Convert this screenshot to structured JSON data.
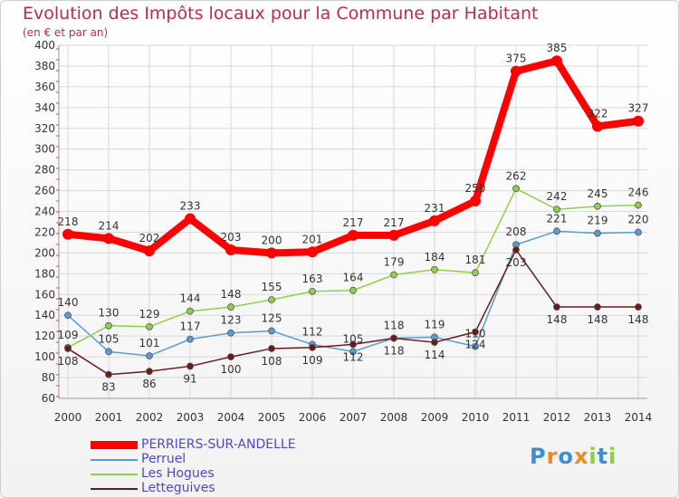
{
  "header": {
    "title": "Evolution des Impôts locaux pour la Commune par Habitant",
    "subtitle": "(en € et par an)"
  },
  "colors": {
    "title": "#c02a4a",
    "axis_text": "#333333",
    "grid": "#d8d8d8",
    "legend_text": "#4a4ad0"
  },
  "chart_data": {
    "type": "line",
    "title": "Evolution des Impôts locaux pour la Commune par Habitant",
    "subtitle": "(en € et par an)",
    "xlabel": "",
    "ylabel": "",
    "ylim": [
      60,
      400
    ],
    "ytick_step": 20,
    "grid": true,
    "legend_position": "bottom-left",
    "x": [
      2000,
      2001,
      2002,
      2003,
      2004,
      2005,
      2006,
      2007,
      2008,
      2009,
      2010,
      2011,
      2012,
      2013,
      2014
    ],
    "series": [
      {
        "name": "PERRIERS-SUR-ANDELLE",
        "color": "#ff0000",
        "thick": true,
        "values": [
          218,
          214,
          202,
          233,
          203,
          200,
          201,
          217,
          217,
          231,
          250,
          375,
          385,
          322,
          327
        ]
      },
      {
        "name": "Perruel",
        "color": "#5b9bd5",
        "thick": false,
        "values": [
          140,
          105,
          101,
          117,
          123,
          125,
          112,
          105,
          118,
          119,
          110,
          208,
          221,
          219,
          220
        ]
      },
      {
        "name": "Les Hogues",
        "color": "#8ed04c",
        "thick": false,
        "values": [
          109,
          130,
          129,
          144,
          148,
          155,
          163,
          164,
          179,
          184,
          181,
          262,
          242,
          245,
          246
        ]
      },
      {
        "name": "Letteguives",
        "color": "#6b1a1a",
        "thick": false,
        "values": [
          108,
          83,
          86,
          91,
          100,
          108,
          109,
          112,
          118,
          114,
          124,
          203,
          148,
          148,
          148
        ]
      }
    ]
  },
  "logo": {
    "letters": [
      {
        "ch": "P",
        "color": "#3a8fd6"
      },
      {
        "ch": "r",
        "color": "#f08a1c"
      },
      {
        "ch": "o",
        "color": "#3a8fd6"
      },
      {
        "ch": "x",
        "color": "#f08a1c"
      },
      {
        "ch": "i",
        "color": "#8ccf3a"
      },
      {
        "ch": "t",
        "color": "#3a8fd6"
      },
      {
        "ch": "i",
        "color": "#8ccf3a"
      }
    ]
  }
}
